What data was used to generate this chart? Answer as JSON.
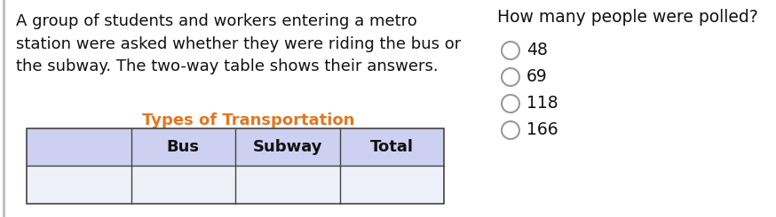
{
  "paragraph_text": "A group of students and workers entering a metro\nstation were asked whether they were riding the bus or\nthe subway. The two-way table shows their answers.",
  "question_text": "How many people were polled?",
  "choices": [
    "48",
    "69",
    "118",
    "166"
  ],
  "table_title": "Types of Transportation",
  "table_headers": [
    "",
    "Bus",
    "Subway",
    "Total"
  ],
  "table_header_bg": "#cdd0f0",
  "table_row_bg": "#e8eaf6",
  "table_border_color": "#444444",
  "title_color": "#e07820",
  "text_color": "#111111",
  "background_color": "#ffffff",
  "para_fontsize": 13,
  "question_fontsize": 13.5,
  "choice_fontsize": 13.5,
  "table_title_fontsize": 13,
  "table_header_fontsize": 13
}
